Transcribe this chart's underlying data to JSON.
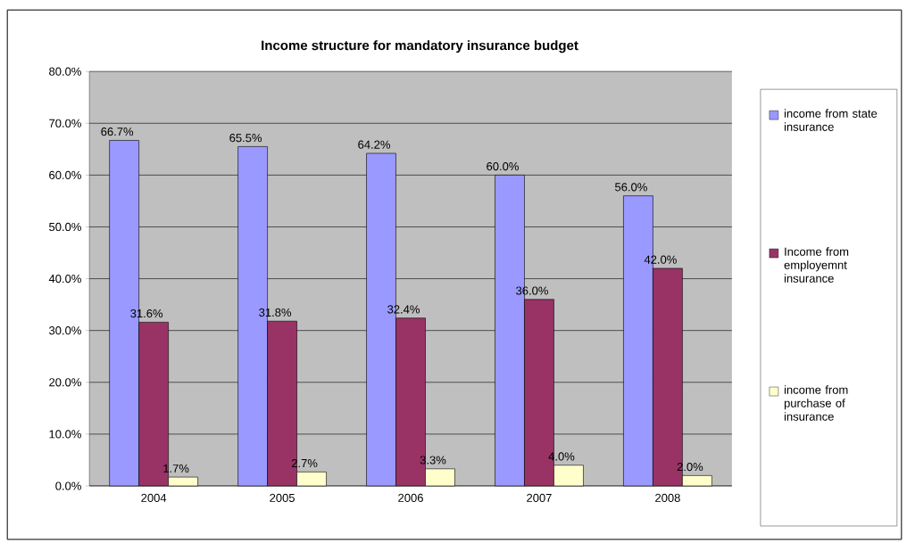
{
  "chart_data": {
    "type": "bar",
    "title": "Income structure for mandatory insurance budget",
    "categories": [
      "2004",
      "2005",
      "2006",
      "2007",
      "2008"
    ],
    "series": [
      {
        "name": "income from state insurance",
        "color": "#9999ff",
        "values": [
          66.7,
          65.5,
          64.2,
          60.0,
          56.0
        ],
        "value_labels": [
          "66.7%",
          "65.5%",
          "64.2%",
          "60.0%",
          "56.0%"
        ]
      },
      {
        "name": "Income from employemnt insurance",
        "color": "#993366",
        "values": [
          31.6,
          31.8,
          32.4,
          36.0,
          42.0
        ],
        "value_labels": [
          "31.6%",
          "31.8%",
          "32.4%",
          "36.0%",
          "42.0%"
        ]
      },
      {
        "name": "income from purchase of insurance",
        "color": "#ffffcc",
        "values": [
          1.7,
          2.7,
          3.3,
          4.0,
          2.0
        ],
        "value_labels": [
          "1.7%",
          "2.7%",
          "3.3%",
          "4.0%",
          "2.0%"
        ]
      }
    ],
    "ylim": [
      0,
      80
    ],
    "yticks": [
      {
        "value": 0,
        "label": "0.0%"
      },
      {
        "value": 10,
        "label": "10.0%"
      },
      {
        "value": 20,
        "label": "20.0%"
      },
      {
        "value": 30,
        "label": "30.0%"
      },
      {
        "value": 40,
        "label": "40.0%"
      },
      {
        "value": 50,
        "label": "50.0%"
      },
      {
        "value": 60,
        "label": "60.0%"
      },
      {
        "value": 70,
        "label": "70.0%"
      },
      {
        "value": 80,
        "label": "80.0%"
      }
    ],
    "grid": "y",
    "legend": "right"
  }
}
